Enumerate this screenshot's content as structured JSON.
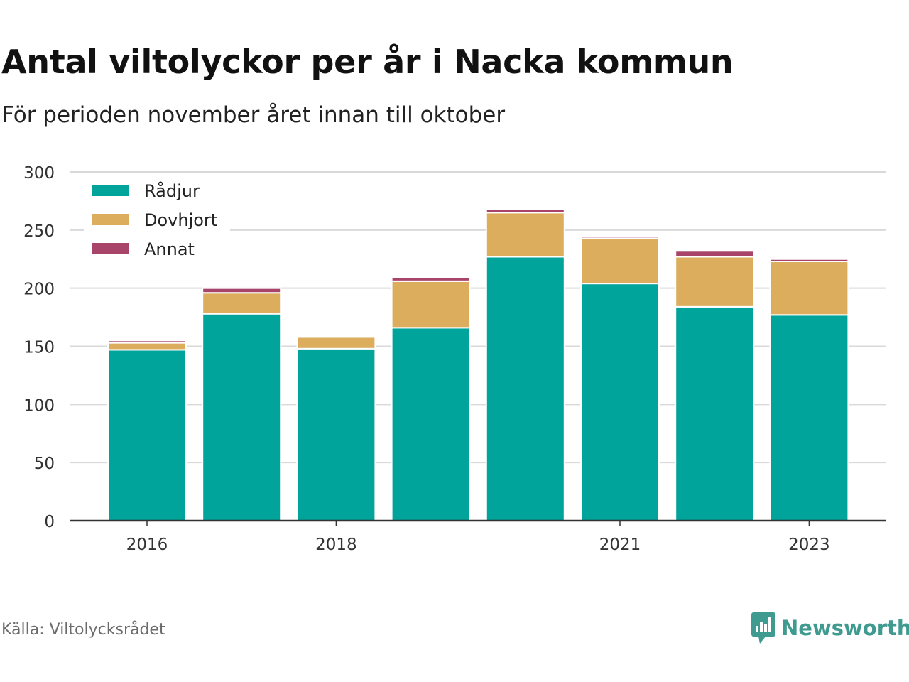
{
  "title": "Antal viltolyckor per år i Nacka kommun",
  "subtitle": "För perioden november året innan till oktober",
  "source": "Källa: Viltolycksrådet",
  "brand": {
    "name": "Newsworthy",
    "icon": "newsworthy-logo-icon"
  },
  "colors": {
    "radjur": "#00a49a",
    "dovhjort": "#dbad5c",
    "annat": "#a8446a",
    "grid": "#d9d9d9",
    "axis": "#333333",
    "brand": "#3f9a8f"
  },
  "chart_data": {
    "type": "bar",
    "stacked": true,
    "categories": [
      "2016",
      "2017",
      "2018",
      "2019",
      "2020",
      "2021",
      "2022",
      "2023"
    ],
    "x_tick_labels": [
      "2016",
      "",
      "2018",
      "",
      "",
      "2021",
      "",
      "2023"
    ],
    "series": [
      {
        "name": "Rådjur",
        "values": [
          147,
          178,
          148,
          166,
          227,
          204,
          184,
          177
        ]
      },
      {
        "name": "Dovhjort",
        "values": [
          6,
          18,
          10,
          40,
          38,
          39,
          43,
          46
        ]
      },
      {
        "name": "Annat",
        "values": [
          2,
          4,
          1,
          3,
          3,
          2,
          5,
          2
        ]
      }
    ],
    "y_ticks": [
      0,
      50,
      100,
      150,
      200,
      250,
      300
    ],
    "ylim": [
      0,
      300
    ],
    "grid": true,
    "legend_position": "top-left",
    "xlabel": "",
    "ylabel": ""
  }
}
